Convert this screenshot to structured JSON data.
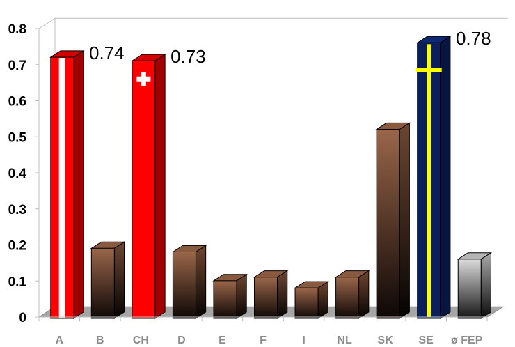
{
  "chart_data": {
    "type": "bar",
    "style": "3d-columns",
    "categories": [
      "A",
      "B",
      "CH",
      "D",
      "E",
      "F",
      "I",
      "NL",
      "SK",
      "SE",
      "ø FEP"
    ],
    "values": [
      0.74,
      0.21,
      0.73,
      0.2,
      0.12,
      0.13,
      0.1,
      0.13,
      0.54,
      0.78,
      0.18
    ],
    "data_labels": [
      "0.74",
      "",
      "0.73",
      "",
      "",
      "",
      "",
      "",
      "",
      "0.78",
      ""
    ],
    "bar_styles": [
      "flag-austria",
      "brown",
      "flag-switzerland",
      "brown",
      "brown",
      "brown",
      "brown",
      "brown",
      "brown",
      "flag-sweden",
      "gray"
    ],
    "colors": {
      "brown_top": "#9a664a",
      "brown_bottom": "#0d0705",
      "red": "#ff0000",
      "dark_red": "#a00000",
      "navy": "#0a1f5c",
      "yellow": "#ffff00",
      "gray_top": "#d9d9d9",
      "floor": "#a6a6a6"
    },
    "ylim": [
      0,
      0.8
    ],
    "yticks": [
      "0",
      "0.1",
      "0.2",
      "0.3",
      "0.4",
      "0.5",
      "0.6",
      "0.7",
      "0.8"
    ],
    "grid": false,
    "legend": "none"
  }
}
